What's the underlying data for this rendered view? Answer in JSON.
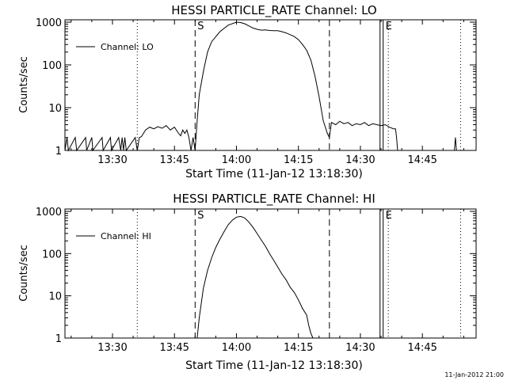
{
  "footer_timestamp": "11-Jan-2012 21:00",
  "chart_data": [
    {
      "type": "line",
      "title": "HESSI PARTICLE_RATE Channel: LO",
      "xlabel": "Start Time (11-Jan-12 13:18:30)",
      "ylabel": "Counts/sec",
      "y_scale": "log",
      "ylim": [
        1,
        1000
      ],
      "xlim": [
        "13:18:30",
        "14:58:00"
      ],
      "x_tick_labels": [
        "13:30",
        "13:45",
        "14:00",
        "14:15",
        "14:30",
        "14:45"
      ],
      "y_tick_labels": [
        "1",
        "10",
        "100",
        "1000"
      ],
      "legend": {
        "placement": "top-left",
        "entries": [
          "Channel: LO"
        ]
      },
      "markers": [
        {
          "type": "dashed",
          "x": "13:50:00",
          "label": "S"
        },
        {
          "type": "dashed",
          "x": "14:22:30",
          "label": ""
        },
        {
          "type": "dotted",
          "x": "13:36:00",
          "label": ""
        },
        {
          "type": "solid",
          "x": "14:34:45",
          "label": ""
        },
        {
          "type": "solid",
          "x": "14:35:30",
          "label": "E"
        },
        {
          "type": "dotted",
          "x": "14:36:45",
          "label": ""
        },
        {
          "type": "dotted",
          "x": "14:54:15",
          "label": ""
        }
      ],
      "series": [
        {
          "name": "Channel: LO",
          "points": [
            [
              "13:18:30",
              1
            ],
            [
              "13:19:00",
              2
            ],
            [
              "13:19:20",
              1
            ],
            [
              "13:21:00",
              2
            ],
            [
              "13:21:20",
              1
            ],
            [
              "13:23:30",
              2
            ],
            [
              "13:23:45",
              1
            ],
            [
              "13:25:00",
              2
            ],
            [
              "13:25:15",
              1
            ],
            [
              "13:27:30",
              2
            ],
            [
              "13:27:45",
              1
            ],
            [
              "13:29:30",
              2
            ],
            [
              "13:29:45",
              1
            ],
            [
              "13:31:30",
              2
            ],
            [
              "13:32:00",
              1
            ],
            [
              "13:32:20",
              2
            ],
            [
              "13:32:40",
              1
            ],
            [
              "13:33:00",
              2
            ],
            [
              "13:33:20",
              1
            ],
            [
              "13:35:30",
              2
            ],
            [
              "13:36:00",
              1
            ],
            [
              "13:36:30",
              2
            ],
            [
              "13:37:00",
              2.1
            ],
            [
              "13:37:30",
              2.5
            ],
            [
              "13:38:00",
              3
            ],
            [
              "13:39:00",
              3.5
            ],
            [
              "13:40:00",
              3.2
            ],
            [
              "13:41:00",
              3.6
            ],
            [
              "13:42:00",
              3.3
            ],
            [
              "13:43:00",
              3.8
            ],
            [
              "13:44:00",
              3
            ],
            [
              "13:45:00",
              3.5
            ],
            [
              "13:46:00",
              2.5
            ],
            [
              "13:46:30",
              2.2
            ],
            [
              "13:47:00",
              3
            ],
            [
              "13:47:30",
              2.5
            ],
            [
              "13:48:00",
              3
            ],
            [
              "13:48:30",
              2
            ],
            [
              "13:49:00",
              1
            ],
            [
              "13:49:30",
              2
            ],
            [
              "13:50:00",
              1
            ],
            [
              "13:50:30",
              5
            ],
            [
              "13:51:00",
              20
            ],
            [
              "13:52:00",
              70
            ],
            [
              "13:53:00",
              200
            ],
            [
              "13:54:00",
              350
            ],
            [
              "13:56:00",
              600
            ],
            [
              "13:58:00",
              850
            ],
            [
              "14:00:00",
              1000
            ],
            [
              "14:01:00",
              980
            ],
            [
              "14:02:00",
              920
            ],
            [
              "14:03:00",
              820
            ],
            [
              "14:04:00",
              730
            ],
            [
              "14:05:00",
              680
            ],
            [
              "14:06:00",
              650
            ],
            [
              "14:07:00",
              660
            ],
            [
              "14:08:00",
              640
            ],
            [
              "14:09:00",
              630
            ],
            [
              "14:10:00",
              630
            ],
            [
              "14:11:00",
              600
            ],
            [
              "14:12:00",
              560
            ],
            [
              "14:13:00",
              510
            ],
            [
              "14:14:00",
              460
            ],
            [
              "14:15:00",
              390
            ],
            [
              "14:16:00",
              300
            ],
            [
              "14:17:00",
              220
            ],
            [
              "14:18:00",
              130
            ],
            [
              "14:19:00",
              55
            ],
            [
              "14:20:00",
              18
            ],
            [
              "14:21:00",
              5
            ],
            [
              "14:22:00",
              2.5
            ],
            [
              "14:22:30",
              2
            ],
            [
              "14:23:00",
              4.5
            ],
            [
              "14:24:00",
              4
            ],
            [
              "14:25:00",
              4.8
            ],
            [
              "14:26:00",
              4.2
            ],
            [
              "14:27:00",
              4.5
            ],
            [
              "14:28:00",
              3.8
            ],
            [
              "14:29:00",
              4.2
            ],
            [
              "14:30:00",
              4
            ],
            [
              "14:31:00",
              4.5
            ],
            [
              "14:32:00",
              3.8
            ],
            [
              "14:33:00",
              4.2
            ],
            [
              "14:34:00",
              4
            ],
            [
              "14:35:00",
              3.8
            ],
            [
              "14:36:00",
              4
            ],
            [
              "14:37:00",
              3.5
            ],
            [
              "14:38:00",
              3.2
            ],
            [
              "14:38:30",
              3.2
            ],
            [
              "14:38:45",
              2
            ],
            [
              "14:39:00",
              1
            ],
            [
              "14:52:45",
              1
            ],
            [
              "14:53:00",
              2
            ],
            [
              "14:53:15",
              1
            ]
          ]
        }
      ]
    },
    {
      "type": "line",
      "title": "HESSI PARTICLE_RATE Channel: HI",
      "xlabel": "Start Time (11-Jan-12 13:18:30)",
      "ylabel": "Counts/sec",
      "y_scale": "log",
      "ylim": [
        1,
        1000
      ],
      "xlim": [
        "13:18:30",
        "14:58:00"
      ],
      "x_tick_labels": [
        "13:30",
        "13:45",
        "14:00",
        "14:15",
        "14:30",
        "14:45"
      ],
      "y_tick_labels": [
        "1",
        "10",
        "100",
        "1000"
      ],
      "legend": {
        "placement": "top-left",
        "entries": [
          "Channel: HI"
        ]
      },
      "markers": [
        {
          "type": "dashed",
          "x": "13:50:00",
          "label": "S"
        },
        {
          "type": "dashed",
          "x": "14:22:30",
          "label": ""
        },
        {
          "type": "dotted",
          "x": "13:36:00",
          "label": ""
        },
        {
          "type": "solid",
          "x": "14:34:45",
          "label": ""
        },
        {
          "type": "solid",
          "x": "14:35:30",
          "label": "E"
        },
        {
          "type": "dotted",
          "x": "14:36:45",
          "label": ""
        },
        {
          "type": "dotted",
          "x": "14:54:15",
          "label": ""
        }
      ],
      "series": [
        {
          "name": "Channel: HI",
          "points": [
            [
              "13:50:30",
              1
            ],
            [
              "13:51:00",
              3
            ],
            [
              "13:52:00",
              15
            ],
            [
              "13:53:00",
              40
            ],
            [
              "13:54:00",
              80
            ],
            [
              "13:55:00",
              140
            ],
            [
              "13:56:00",
              220
            ],
            [
              "13:57:00",
              330
            ],
            [
              "13:58:00",
              480
            ],
            [
              "13:59:00",
              620
            ],
            [
              "14:00:00",
              730
            ],
            [
              "14:01:00",
              760
            ],
            [
              "14:02:00",
              700
            ],
            [
              "14:03:00",
              560
            ],
            [
              "14:04:00",
              420
            ],
            [
              "14:05:00",
              300
            ],
            [
              "14:06:00",
              210
            ],
            [
              "14:07:00",
              150
            ],
            [
              "14:08:00",
              100
            ],
            [
              "14:09:00",
              70
            ],
            [
              "14:10:00",
              48
            ],
            [
              "14:11:00",
              33
            ],
            [
              "14:12:00",
              24
            ],
            [
              "14:13:00",
              16
            ],
            [
              "14:14:00",
              12
            ],
            [
              "14:15:00",
              8
            ],
            [
              "14:16:00",
              5
            ],
            [
              "14:17:00",
              3.5
            ],
            [
              "14:17:30",
              2
            ],
            [
              "14:18:00",
              1.3
            ],
            [
              "14:18:30",
              1
            ]
          ]
        }
      ]
    }
  ]
}
